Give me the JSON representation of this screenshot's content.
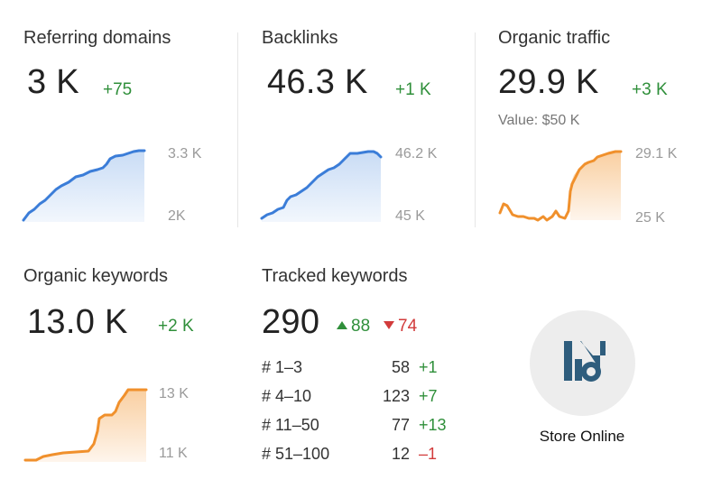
{
  "cards": {
    "referring": {
      "title": "Referring domains",
      "value": "3 K",
      "delta": "+75",
      "axis_top": "3.3 K",
      "axis_bottom": "2K"
    },
    "backlinks": {
      "title": "Backlinks",
      "value": "46.3 K",
      "delta": "+1 K",
      "axis_top": "46.2 K",
      "axis_bottom": "45 K"
    },
    "organic_traffic": {
      "title": "Organic traffic",
      "value": "29.9 K",
      "delta": "+3 K",
      "sub": "Value: $50 K",
      "axis_top": "29.1 K",
      "axis_bottom": "25 K"
    },
    "organic_keywords": {
      "title": "Organic keywords",
      "value": "13.0 K",
      "delta": "+2 K",
      "axis_top": "13 K",
      "axis_bottom": "11 K"
    },
    "tracked": {
      "title": "Tracked keywords",
      "value": "290",
      "up": "88",
      "down": "74",
      "rows": [
        {
          "label": "# 1–3",
          "count": "58",
          "delta": "+1",
          "trend": "up"
        },
        {
          "label": "# 4–10",
          "count": "123",
          "delta": "+7",
          "trend": "up"
        },
        {
          "label": "# 11–50",
          "count": "77",
          "delta": "+13",
          "trend": "up"
        },
        {
          "label": "# 51–100",
          "count": "12",
          "delta": "–1",
          "trend": "down"
        }
      ]
    }
  },
  "store": {
    "label": "Store Online"
  },
  "colors": {
    "blue": "#3b7dd8",
    "orange": "#f0902c",
    "green": "#2f8f3a",
    "red": "#d23b3b"
  }
}
